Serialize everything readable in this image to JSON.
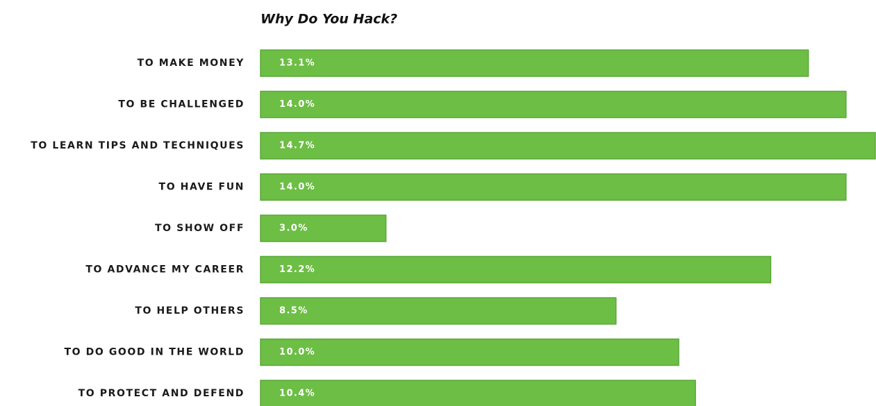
{
  "chart_data": {
    "type": "bar",
    "orientation": "horizontal",
    "title": "Why Do You Hack?",
    "categories": [
      "TO MAKE MONEY",
      "TO BE CHALLENGED",
      "TO LEARN TIPS AND TECHNIQUES",
      "TO HAVE FUN",
      "TO SHOW OFF",
      "TO ADVANCE MY CAREER",
      "TO HELP OTHERS",
      "TO DO GOOD IN THE WORLD",
      "TO PROTECT AND DEFEND"
    ],
    "values": [
      13.1,
      14.0,
      14.7,
      14.0,
      3.0,
      12.2,
      8.5,
      10.0,
      10.4
    ],
    "value_labels": [
      "13.1%",
      "14.0%",
      "14.7%",
      "14.0%",
      "3.0%",
      "12.2%",
      "8.5%",
      "10.0%",
      "10.4%"
    ],
    "color": "#6dbe45"
  }
}
